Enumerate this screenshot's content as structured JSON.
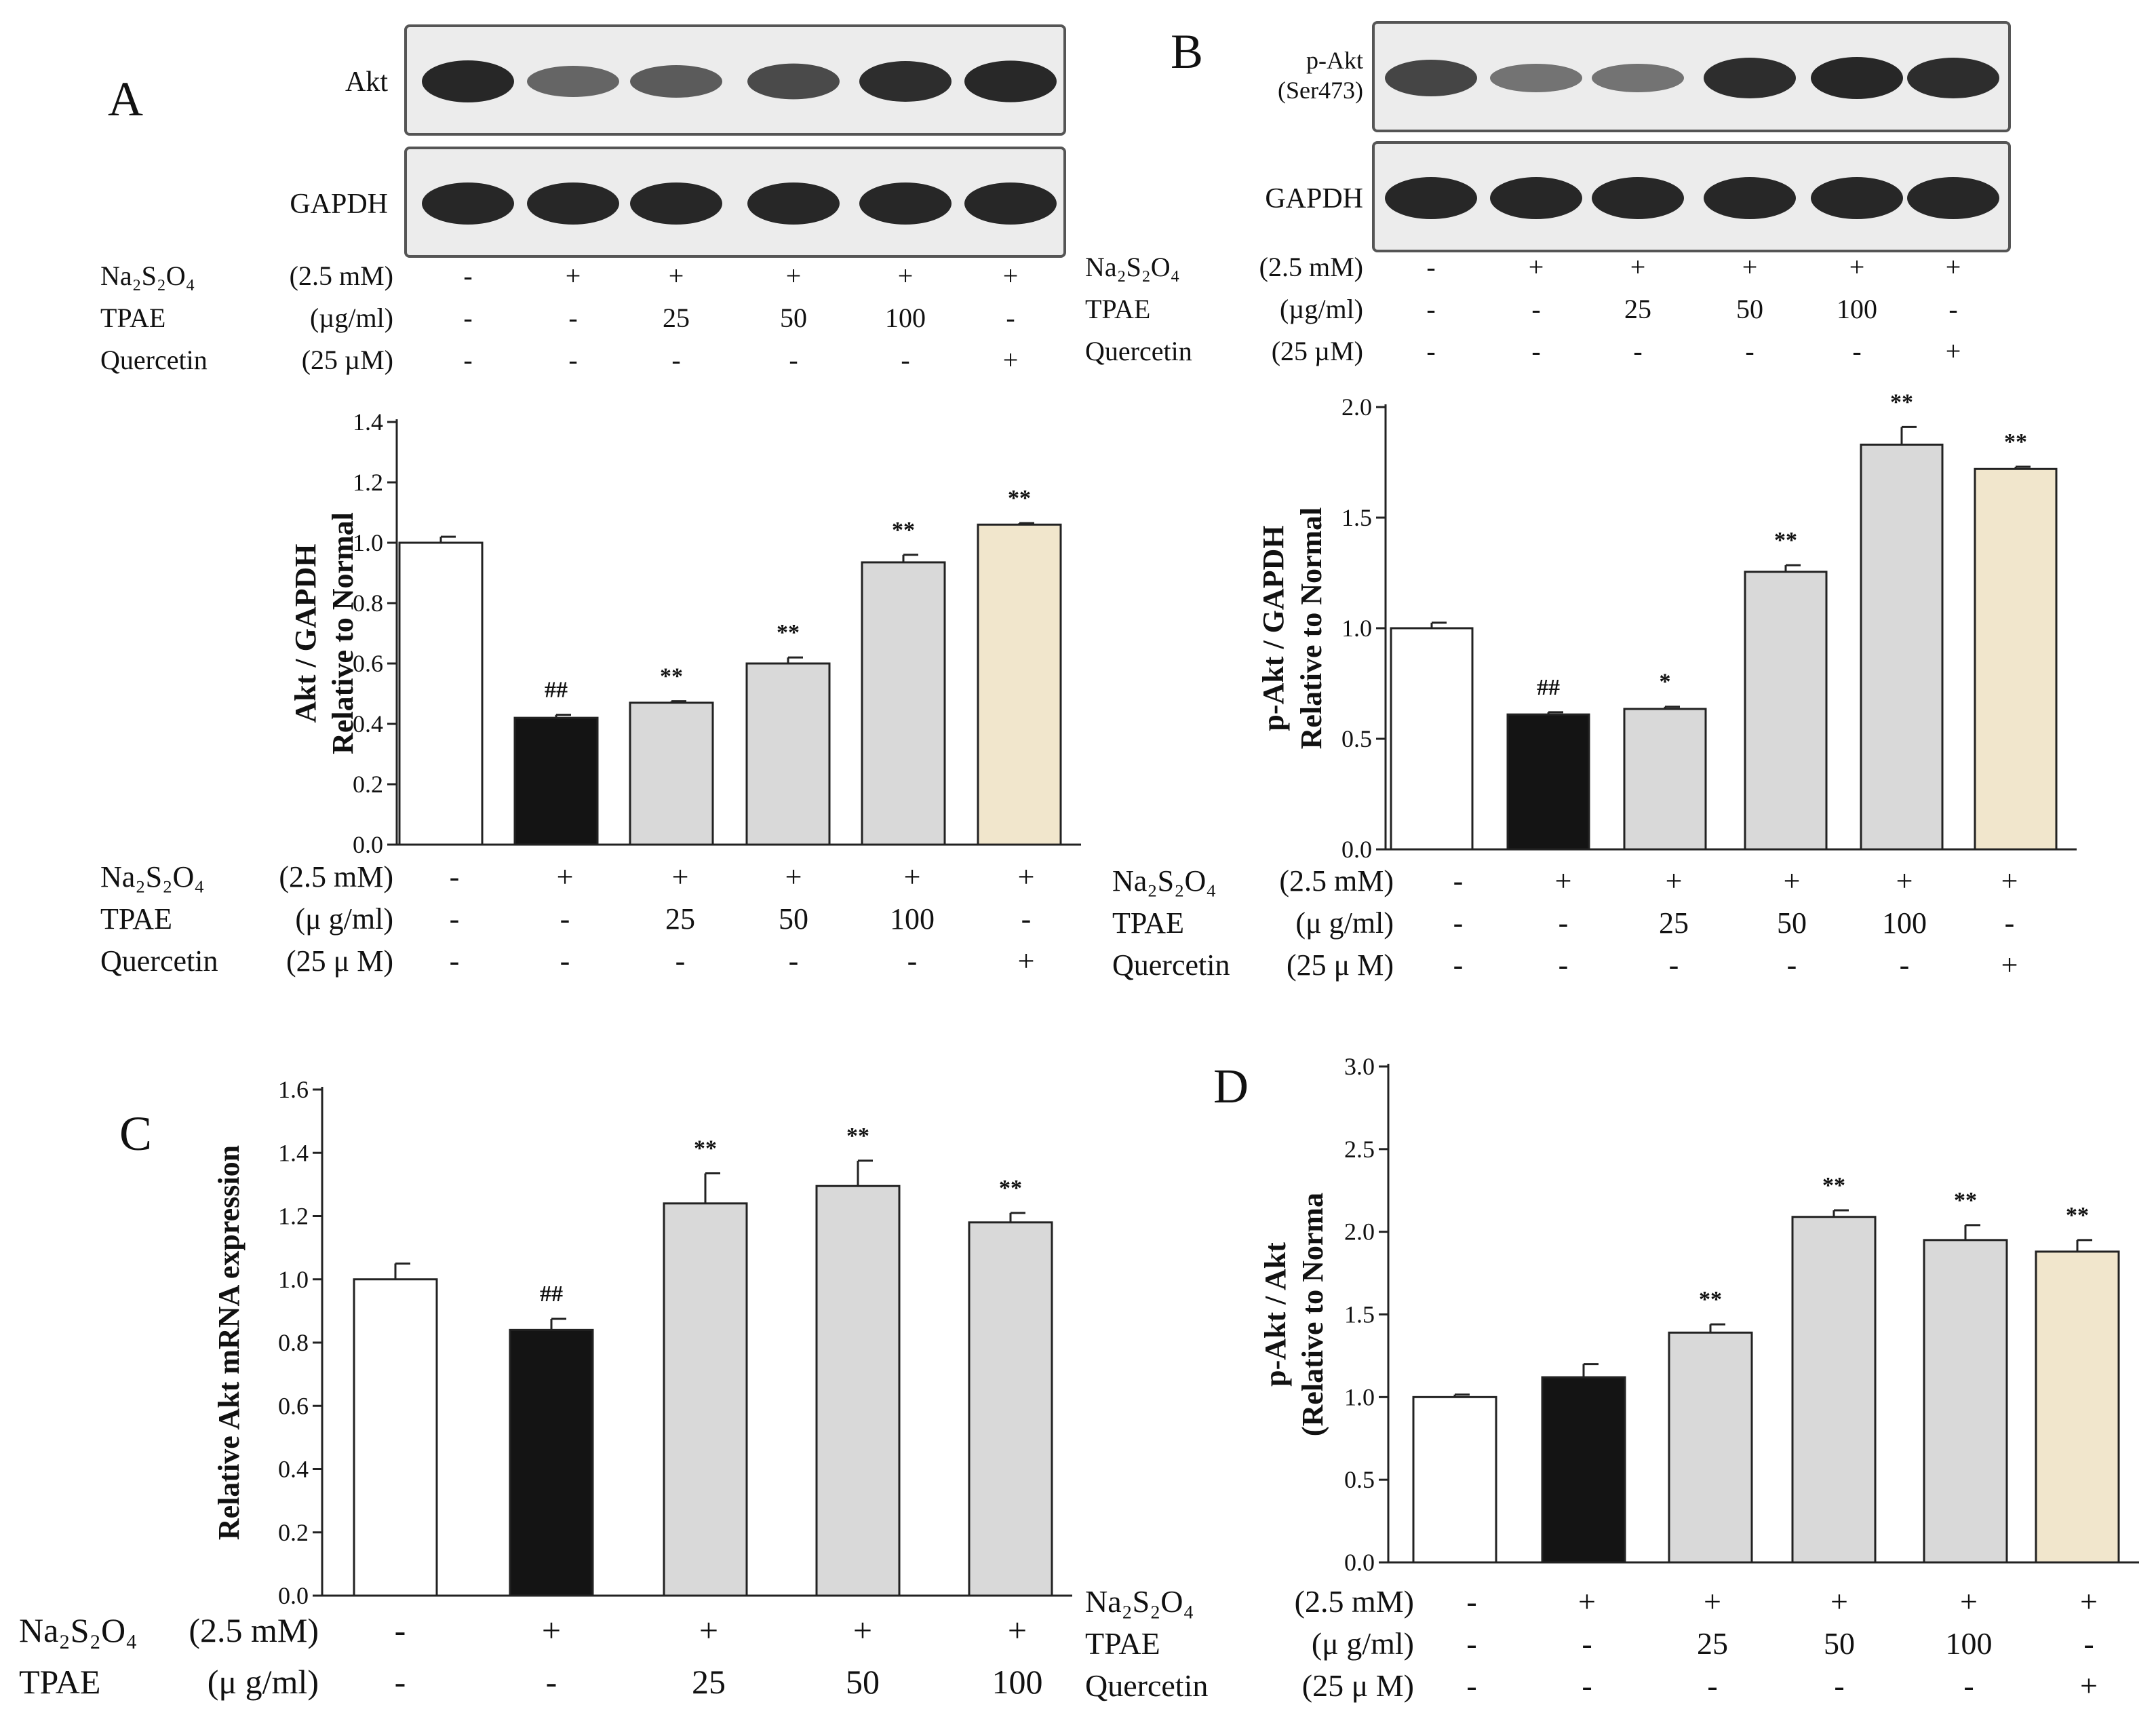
{
  "colors": {
    "white_bar": "#ffffff",
    "black_bar": "#141414",
    "gray_bar": "#d9d9d9",
    "cream_bar": "#f1e6cc",
    "band": "#1e1e1e"
  },
  "panels": [
    {
      "letter": "A",
      "blots": [
        {
          "label": "Akt",
          "intensity": [
            0.95,
            0.55,
            0.6,
            0.72,
            0.9,
            0.93
          ]
        },
        {
          "label": "GAPDH",
          "intensity": [
            0.95,
            0.95,
            0.95,
            0.95,
            0.95,
            0.95
          ]
        }
      ],
      "table_top": {
        "rows": [
          {
            "label": "Na₂S₂O₄",
            "unit": "(2.5 mM)",
            "values": [
              "-",
              "+",
              "+",
              "+",
              "+",
              "+"
            ]
          },
          {
            "label": "TPAE",
            "unit": "(µg/ml)",
            "values": [
              "-",
              "-",
              "25",
              "50",
              "100",
              "-"
            ]
          },
          {
            "label": "Quercetin",
            "unit": "(25 µM)",
            "values": [
              "-",
              "-",
              "-",
              "-",
              "-",
              "+"
            ]
          }
        ]
      },
      "ylabel_lines": [
        "Akt / GAPDH",
        "Relative to Normal"
      ],
      "table_bottom": {
        "rows": [
          {
            "label": "Na₂S₂O₄",
            "unit": "(2.5 mM)",
            "values": [
              "-",
              "+",
              "+",
              "+",
              "+",
              "+"
            ]
          },
          {
            "label": "TPAE",
            "unit": "(μ g/ml)",
            "values": [
              "-",
              "-",
              "25",
              "50",
              "100",
              "-"
            ]
          },
          {
            "label": "Quercetin",
            "unit": "(25 μ M)",
            "values": [
              "-",
              "-",
              "-",
              "-",
              "-",
              "+"
            ]
          }
        ]
      }
    },
    {
      "letter": "B",
      "blots": [
        {
          "label": "p-Akt",
          "label2": "(Ser473)",
          "intensity": [
            0.75,
            0.45,
            0.45,
            0.9,
            0.95,
            0.9
          ]
        },
        {
          "label": "GAPDH",
          "intensity": [
            0.95,
            0.95,
            0.95,
            0.95,
            0.95,
            0.95
          ]
        }
      ],
      "table_top": {
        "rows": [
          {
            "label": "Na₂S₂O₄",
            "unit": "(2.5 mM)",
            "values": [
              "-",
              "+",
              "+",
              "+",
              "+",
              "+"
            ]
          },
          {
            "label": "TPAE",
            "unit": "(µg/ml)",
            "values": [
              "-",
              "-",
              "25",
              "50",
              "100",
              "-"
            ]
          },
          {
            "label": "Quercetin",
            "unit": "(25 µM)",
            "values": [
              "-",
              "-",
              "-",
              "-",
              "-",
              "+"
            ]
          }
        ]
      },
      "ylabel_lines": [
        "p-Akt / GAPDH",
        "Relative to Normal"
      ],
      "table_bottom": {
        "rows": [
          {
            "label": "Na₂S₂O₄",
            "unit": "(2.5 mM)",
            "values": [
              "-",
              "+",
              "+",
              "+",
              "+",
              "+"
            ]
          },
          {
            "label": "TPAE",
            "unit": "(μ g/ml)",
            "values": [
              "-",
              "-",
              "25",
              "50",
              "100",
              "-"
            ]
          },
          {
            "label": "Quercetin",
            "unit": "(25 μ M)",
            "values": [
              "-",
              "-",
              "-",
              "-",
              "-",
              "+"
            ]
          }
        ]
      }
    },
    {
      "letter": "C",
      "ylabel_lines": [
        "Relative Akt mRNA expression"
      ],
      "table_bottom": {
        "rows": [
          {
            "label": "Na₂S₂O₄",
            "unit": "(2.5 mM)",
            "values": [
              "-",
              "+",
              "+",
              "+",
              "+"
            ]
          },
          {
            "label": "TPAE",
            "unit": "(μ g/ml)",
            "values": [
              "-",
              "-",
              "25",
              "50",
              "100"
            ]
          }
        ]
      }
    },
    {
      "letter": "D",
      "ylabel_lines": [
        "p-Akt / Akt",
        "(Relative to Norma"
      ],
      "table_bottom": {
        "rows": [
          {
            "label": "Na₂S₂O₄",
            "unit": "(2.5 mM)",
            "values": [
              "-",
              "+",
              "+",
              "+",
              "+",
              "+"
            ]
          },
          {
            "label": "TPAE",
            "unit": "(μ g/ml)",
            "values": [
              "-",
              "-",
              "25",
              "50",
              "100",
              "-"
            ]
          },
          {
            "label": "Quercetin",
            "unit": "(25 μ M)",
            "values": [
              "-",
              "-",
              "-",
              "-",
              "-",
              "+"
            ]
          }
        ]
      }
    }
  ],
  "chart_data": [
    {
      "panel": "A",
      "type": "bar",
      "ylim": [
        0,
        1.4
      ],
      "yticks": [
        "0.0",
        "0.2",
        "0.4",
        "0.6",
        "0.8",
        "1.0",
        "1.2",
        "1.4"
      ],
      "values": [
        1.0,
        0.42,
        0.47,
        0.6,
        0.935,
        1.06
      ],
      "errors": [
        0.02,
        0.01,
        0.005,
        0.02,
        0.025,
        0.005
      ],
      "fills": [
        "white",
        "black",
        "gray",
        "gray",
        "gray",
        "cream"
      ],
      "annotations": [
        "",
        "##",
        "**",
        "**",
        "**",
        "**"
      ],
      "grid": false
    },
    {
      "panel": "B",
      "type": "bar",
      "ylim": [
        0,
        2.0
      ],
      "yticks": [
        "0.0",
        "0.5",
        "1.0",
        "1.5",
        "2.0"
      ],
      "values": [
        1.0,
        0.61,
        0.635,
        1.255,
        1.83,
        1.72
      ],
      "errors": [
        0.025,
        0.01,
        0.01,
        0.03,
        0.08,
        0.01
      ],
      "fills": [
        "white",
        "black",
        "gray",
        "gray",
        "gray",
        "cream"
      ],
      "annotations": [
        "",
        "##",
        "*",
        "**",
        "**",
        "**"
      ],
      "grid": false
    },
    {
      "panel": "C",
      "type": "bar",
      "ylim": [
        0,
        1.6
      ],
      "yticks": [
        "0.0",
        "0.2",
        "0.4",
        "0.6",
        "0.8",
        "1.0",
        "1.2",
        "1.4",
        "1.6"
      ],
      "values": [
        1.0,
        0.84,
        1.24,
        1.295,
        1.18
      ],
      "errors": [
        0.05,
        0.035,
        0.095,
        0.08,
        0.03
      ],
      "fills": [
        "white",
        "black",
        "gray",
        "gray",
        "gray"
      ],
      "annotations": [
        "",
        "##",
        "**",
        "**",
        "**"
      ],
      "grid": false
    },
    {
      "panel": "D",
      "type": "bar",
      "ylim": [
        0,
        3.0
      ],
      "yticks": [
        "0.0",
        "0.5",
        "1.0",
        "1.5",
        "2.0",
        "2.5",
        "3.0"
      ],
      "values": [
        1.0,
        1.12,
        1.39,
        2.09,
        1.95,
        1.88
      ],
      "errors": [
        0.015,
        0.08,
        0.05,
        0.04,
        0.09,
        0.07
      ],
      "fills": [
        "white",
        "black",
        "gray",
        "gray",
        "gray",
        "cream"
      ],
      "annotations": [
        "",
        "",
        "**",
        "**",
        "**",
        "**"
      ],
      "grid": false
    }
  ]
}
